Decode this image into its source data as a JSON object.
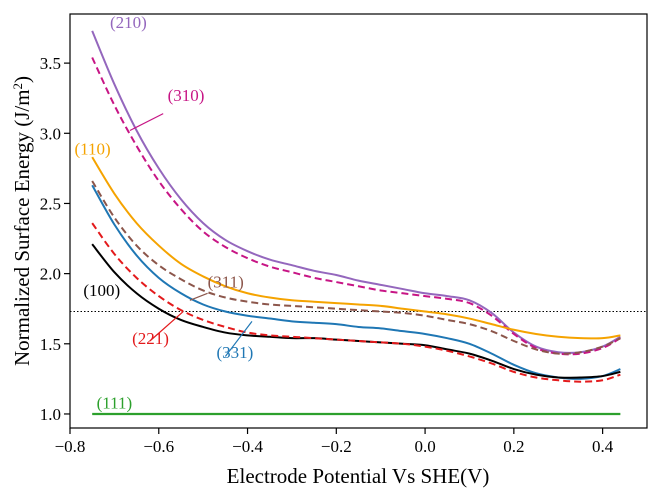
{
  "chart_data": {
    "type": "line",
    "title": "",
    "xlabel": "Electrode Potential Vs SHE(V)",
    "ylabel_main": "Normalized Surface Energy (J/m",
    "ylabel_sup": "2",
    "ylabel_close": ")",
    "xlim": [
      -0.8,
      0.5
    ],
    "ylim": [
      0.9,
      3.85
    ],
    "xticks": [
      -0.8,
      -0.6,
      -0.4,
      -0.2,
      0.0,
      0.2,
      0.4
    ],
    "xtick_labels": [
      "−0.8",
      "−0.6",
      "−0.4",
      "−0.2",
      "0.0",
      "0.2",
      "0.4"
    ],
    "yticks": [
      1.0,
      1.5,
      2.0,
      2.5,
      3.0,
      3.5
    ],
    "ytick_labels": [
      "1.0",
      "1.5",
      "2.0",
      "2.5",
      "3.0",
      "3.5"
    ],
    "grid": false,
    "reference_line": {
      "y": 1.73,
      "style": "dotted",
      "color": "#000000"
    },
    "series": [
      {
        "name": "(210)",
        "color": "#9467bd",
        "dash": false,
        "label_x": -0.71,
        "label_y": 3.75,
        "x": [
          -0.75,
          -0.7,
          -0.65,
          -0.6,
          -0.55,
          -0.5,
          -0.45,
          -0.4,
          -0.35,
          -0.3,
          -0.25,
          -0.2,
          -0.15,
          -0.1,
          -0.05,
          0.0,
          0.05,
          0.1,
          0.15,
          0.2,
          0.25,
          0.3,
          0.35,
          0.4,
          0.44
        ],
        "y": [
          3.73,
          3.35,
          3.02,
          2.75,
          2.53,
          2.36,
          2.24,
          2.16,
          2.1,
          2.06,
          2.02,
          1.99,
          1.95,
          1.92,
          1.89,
          1.86,
          1.84,
          1.81,
          1.72,
          1.58,
          1.48,
          1.44,
          1.44,
          1.48,
          1.55
        ]
      },
      {
        "name": "(310)",
        "color": "#c71585",
        "dash": true,
        "label_x": -0.58,
        "label_y": 3.23,
        "x": [
          -0.75,
          -0.7,
          -0.65,
          -0.6,
          -0.55,
          -0.5,
          -0.45,
          -0.4,
          -0.35,
          -0.3,
          -0.25,
          -0.2,
          -0.15,
          -0.1,
          -0.05,
          0.0,
          0.05,
          0.1,
          0.15,
          0.2,
          0.25,
          0.3,
          0.35,
          0.4,
          0.44
        ],
        "y": [
          3.54,
          3.2,
          2.91,
          2.66,
          2.46,
          2.3,
          2.19,
          2.11,
          2.05,
          2.01,
          1.97,
          1.94,
          1.91,
          1.88,
          1.86,
          1.84,
          1.82,
          1.79,
          1.7,
          1.57,
          1.47,
          1.43,
          1.43,
          1.47,
          1.54
        ]
      },
      {
        "name": "(110)",
        "color": "#f5a300",
        "dash": false,
        "label_x": -0.79,
        "label_y": 2.85,
        "x": [
          -0.75,
          -0.7,
          -0.65,
          -0.6,
          -0.55,
          -0.5,
          -0.45,
          -0.4,
          -0.35,
          -0.3,
          -0.25,
          -0.2,
          -0.15,
          -0.1,
          -0.05,
          0.0,
          0.05,
          0.1,
          0.15,
          0.2,
          0.25,
          0.3,
          0.35,
          0.4,
          0.44
        ],
        "y": [
          2.83,
          2.57,
          2.36,
          2.2,
          2.07,
          1.98,
          1.91,
          1.86,
          1.83,
          1.81,
          1.8,
          1.79,
          1.78,
          1.77,
          1.75,
          1.73,
          1.71,
          1.68,
          1.64,
          1.6,
          1.57,
          1.55,
          1.54,
          1.54,
          1.56
        ]
      },
      {
        "name": "(311)",
        "color": "#8c564b",
        "dash": true,
        "label_x": -0.49,
        "label_y": 1.9,
        "x": [
          -0.75,
          -0.7,
          -0.65,
          -0.6,
          -0.55,
          -0.5,
          -0.45,
          -0.4,
          -0.35,
          -0.3,
          -0.25,
          -0.2,
          -0.15,
          -0.1,
          -0.05,
          0.0,
          0.05,
          0.1,
          0.15,
          0.2,
          0.25,
          0.3,
          0.35,
          0.4,
          0.44
        ],
        "y": [
          2.66,
          2.4,
          2.2,
          2.06,
          1.96,
          1.88,
          1.83,
          1.8,
          1.78,
          1.77,
          1.76,
          1.75,
          1.74,
          1.73,
          1.72,
          1.7,
          1.67,
          1.64,
          1.59,
          1.52,
          1.46,
          1.43,
          1.44,
          1.48,
          1.54
        ]
      },
      {
        "name": "(331)",
        "color": "#1f77b4",
        "dash": false,
        "label_x": -0.47,
        "label_y": 1.4,
        "x": [
          -0.75,
          -0.7,
          -0.65,
          -0.6,
          -0.55,
          -0.5,
          -0.45,
          -0.4,
          -0.35,
          -0.3,
          -0.25,
          -0.2,
          -0.15,
          -0.1,
          -0.05,
          0.0,
          0.05,
          0.1,
          0.15,
          0.2,
          0.25,
          0.3,
          0.35,
          0.4,
          0.44
        ],
        "y": [
          2.63,
          2.35,
          2.13,
          1.97,
          1.86,
          1.78,
          1.73,
          1.7,
          1.68,
          1.66,
          1.65,
          1.64,
          1.62,
          1.61,
          1.59,
          1.57,
          1.54,
          1.5,
          1.43,
          1.35,
          1.29,
          1.26,
          1.25,
          1.27,
          1.32
        ]
      },
      {
        "name": "(100)",
        "color": "#000000",
        "dash": false,
        "label_x": -0.77,
        "label_y": 1.84,
        "x": [
          -0.75,
          -0.7,
          -0.65,
          -0.6,
          -0.55,
          -0.5,
          -0.45,
          -0.4,
          -0.35,
          -0.3,
          -0.25,
          -0.2,
          -0.15,
          -0.1,
          -0.05,
          0.0,
          0.05,
          0.1,
          0.15,
          0.2,
          0.25,
          0.3,
          0.35,
          0.4,
          0.44
        ],
        "y": [
          2.21,
          2.01,
          1.86,
          1.75,
          1.67,
          1.62,
          1.58,
          1.56,
          1.55,
          1.54,
          1.54,
          1.53,
          1.52,
          1.51,
          1.5,
          1.49,
          1.46,
          1.43,
          1.38,
          1.32,
          1.28,
          1.26,
          1.26,
          1.27,
          1.3
        ]
      },
      {
        "name": "(221)",
        "color": "#e31a1c",
        "dash": true,
        "label_x": -0.66,
        "label_y": 1.5,
        "x": [
          -0.75,
          -0.7,
          -0.65,
          -0.6,
          -0.55,
          -0.5,
          -0.45,
          -0.4,
          -0.35,
          -0.3,
          -0.25,
          -0.2,
          -0.15,
          -0.1,
          -0.05,
          0.0,
          0.05,
          0.1,
          0.15,
          0.2,
          0.25,
          0.3,
          0.35,
          0.4,
          0.44
        ],
        "y": [
          2.36,
          2.14,
          1.97,
          1.84,
          1.74,
          1.67,
          1.62,
          1.58,
          1.56,
          1.55,
          1.54,
          1.53,
          1.52,
          1.51,
          1.5,
          1.48,
          1.45,
          1.41,
          1.36,
          1.3,
          1.26,
          1.24,
          1.23,
          1.24,
          1.28
        ]
      },
      {
        "name": "(111)",
        "color": "#2ca02c",
        "dash": false,
        "label_x": -0.74,
        "label_y": 1.04,
        "x": [
          -0.75,
          0.44
        ],
        "y": [
          1.0,
          1.0
        ]
      }
    ]
  }
}
